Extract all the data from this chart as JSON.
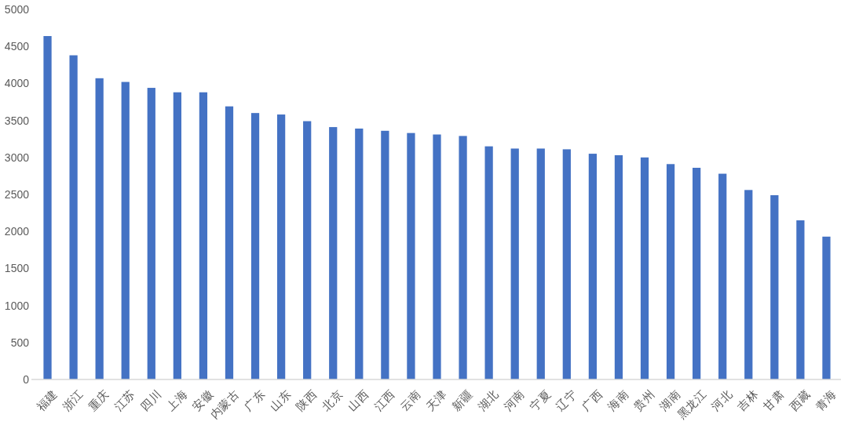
{
  "chart_data": {
    "type": "bar",
    "categories": [
      "福建",
      "浙江",
      "重庆",
      "江苏",
      "四川",
      "上海",
      "安徽",
      "内蒙古",
      "广东",
      "山东",
      "陕西",
      "北京",
      "山西",
      "江西",
      "云南",
      "天津",
      "新疆",
      "湖北",
      "河南",
      "宁夏",
      "辽宁",
      "广西",
      "海南",
      "贵州",
      "湖南",
      "黑龙江",
      "河北",
      "吉林",
      "甘肃",
      "西藏",
      "青海"
    ],
    "values": [
      4640,
      4380,
      4070,
      4020,
      3940,
      3880,
      3880,
      3690,
      3600,
      3580,
      3490,
      3410,
      3390,
      3360,
      3330,
      3310,
      3290,
      3150,
      3120,
      3120,
      3110,
      3050,
      3030,
      3000,
      2910,
      2860,
      2780,
      2560,
      2490,
      2150,
      1930
    ],
    "color": "#4472c4",
    "ylim": [
      0,
      5000
    ],
    "yticks": [
      0,
      500,
      1000,
      1500,
      2000,
      2500,
      3000,
      3500,
      4000,
      4500,
      5000
    ]
  }
}
